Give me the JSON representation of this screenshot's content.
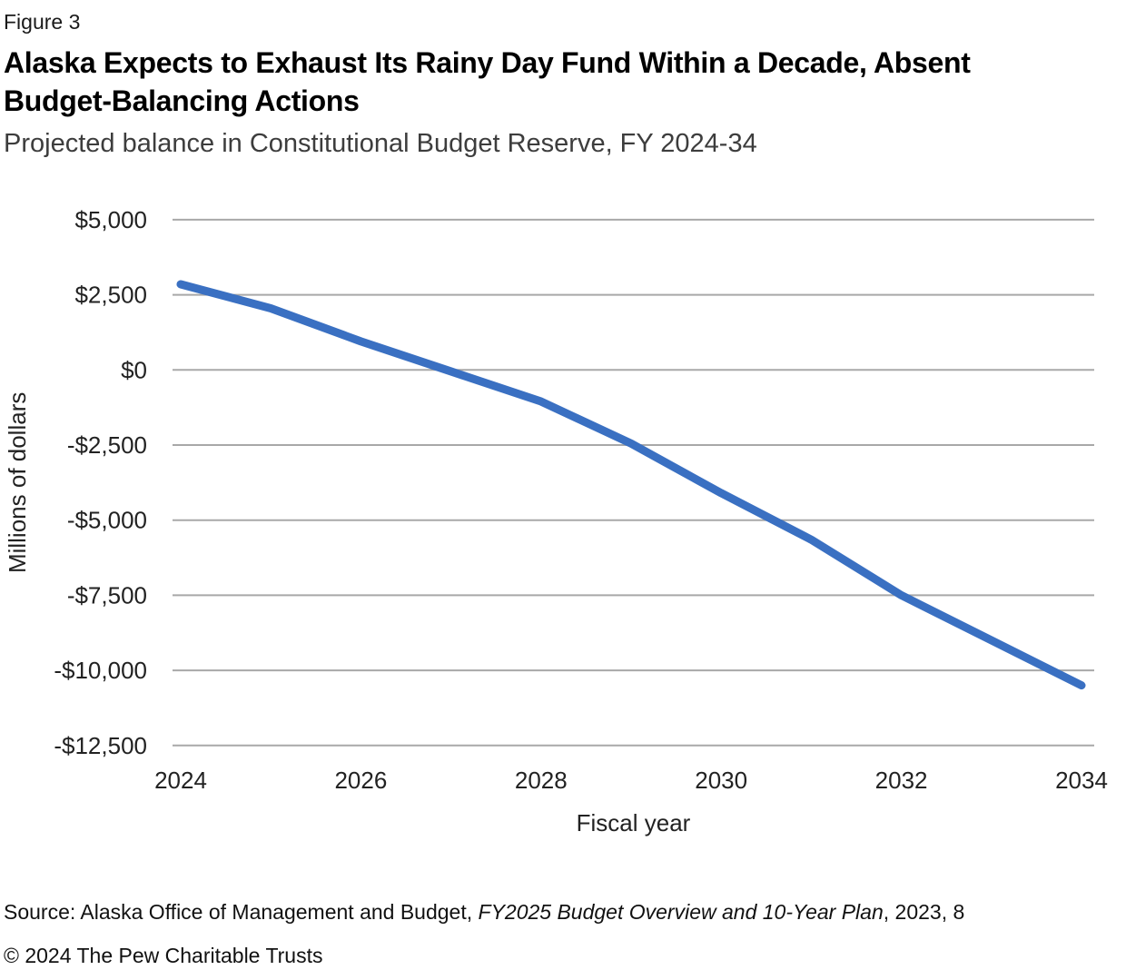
{
  "figure_label": "Figure 3",
  "title_line1": "Alaska Expects to Exhaust Its Rainy Day Fund Within a Decade, Absent",
  "title_line2": "Budget-Balancing Actions",
  "subtitle": "Projected balance in Constitutional Budget Reserve, FY 2024-34",
  "chart_data": {
    "type": "line",
    "series_name": "Projected Constitutional Budget Reserve balance",
    "x": [
      2024,
      2025,
      2026,
      2027,
      2028,
      2029,
      2030,
      2031,
      2032,
      2033,
      2034
    ],
    "values": [
      2850,
      2050,
      950,
      -50,
      -1050,
      -2450,
      -4100,
      -5650,
      -7500,
      -9000,
      -10500
    ],
    "xlabel": "Fiscal year",
    "ylabel": "Millions of dollars",
    "ylim": [
      -12500,
      5000
    ],
    "ytick_values": [
      5000,
      2500,
      0,
      -2500,
      -5000,
      -7500,
      -10000,
      -12500
    ],
    "ytick_labels": [
      "$5,000",
      "$2,500",
      "$0",
      "-$2,500",
      "-$5,000",
      "-$7,500",
      "-$10,000",
      "-$12,500"
    ],
    "xtick_values": [
      2024,
      2026,
      2028,
      2030,
      2032,
      2034
    ],
    "xtick_labels": [
      "2024",
      "2026",
      "2028",
      "2030",
      "2032",
      "2034"
    ],
    "grid": true,
    "legend": "none",
    "line_color": "#3a70c2",
    "grid_color": "#a8a8a8",
    "tick_label_color": "#222222"
  },
  "footer": {
    "source_prefix": "Source: Alaska Office of Management and Budget, ",
    "source_italic": "FY2025 Budget Overview and 10-Year Plan",
    "source_suffix": ", 2023, 8",
    "copyright": "© 2024 The Pew Charitable Trusts"
  }
}
